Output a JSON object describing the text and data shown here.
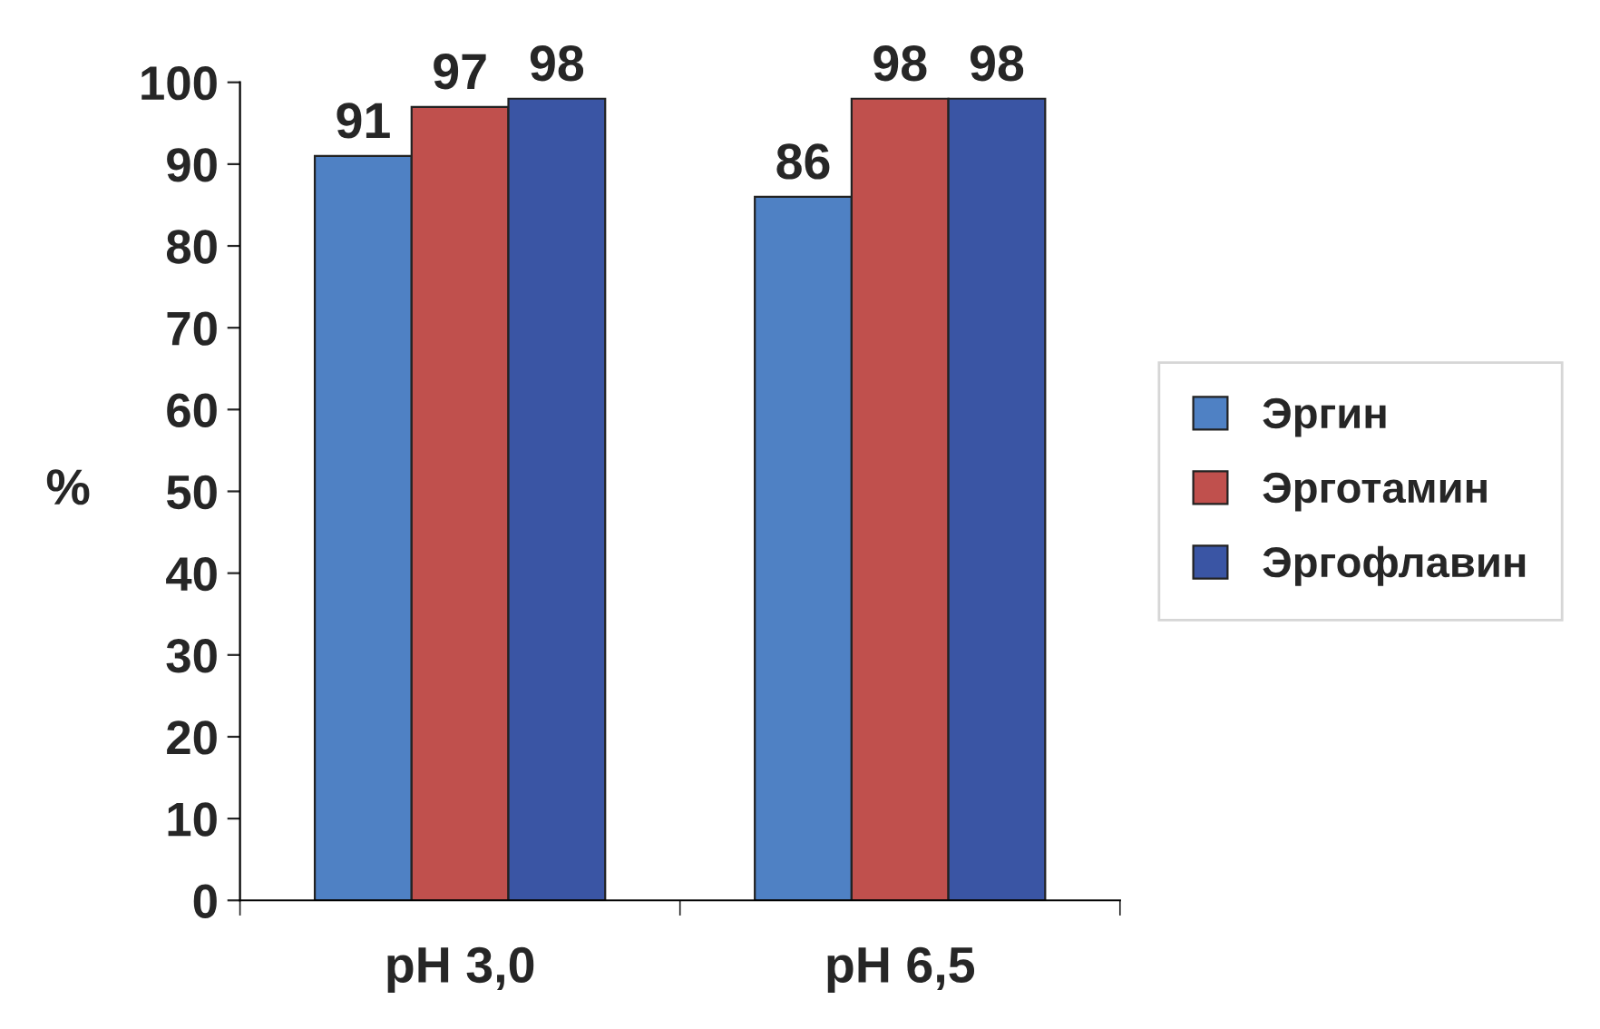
{
  "chart_data": {
    "type": "bar",
    "ylabel": "%",
    "categories": [
      "pH 3,0",
      "pH 6,5"
    ],
    "series": [
      {
        "name": "Эргин",
        "color": "#4f81c4",
        "values": [
          91,
          86
        ]
      },
      {
        "name": "Эрготамин",
        "color": "#c0504d",
        "values": [
          97,
          98
        ]
      },
      {
        "name": "Эргофлавин",
        "color": "#3a55a4",
        "values": [
          98,
          98
        ]
      }
    ],
    "ylim": [
      0,
      100
    ],
    "yticks": [
      0,
      10,
      20,
      30,
      40,
      50,
      60,
      70,
      80,
      90,
      100
    ],
    "data_labels": true,
    "legend": "right",
    "grid": false
  }
}
